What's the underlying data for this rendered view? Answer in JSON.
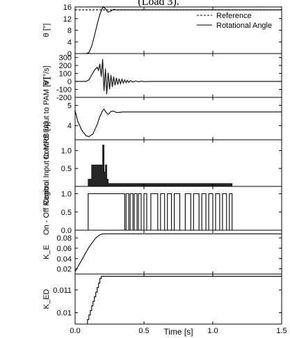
{
  "caption": "(Load 3).",
  "xlabel": "Time [s]",
  "chart_data": [
    {
      "type": "line",
      "panel": "theta",
      "ylabel": "θ [°]",
      "ylim": [
        0,
        16
      ],
      "yticks": [
        0,
        4,
        8,
        12,
        16
      ],
      "xlim": [
        0,
        1.5
      ],
      "legend_position": "top-right",
      "series": [
        {
          "name": "Reference",
          "style": "dashed",
          "x": [
            0,
            1.5
          ],
          "y": [
            15,
            15
          ]
        },
        {
          "name": "Rotational Angle",
          "style": "solid",
          "x": [
            0,
            0.08,
            0.1,
            0.12,
            0.14,
            0.16,
            0.18,
            0.2,
            0.21,
            0.22,
            0.24,
            0.26,
            0.28,
            0.3,
            1.5
          ],
          "y": [
            0,
            0,
            0.3,
            2.5,
            6.0,
            10.0,
            13.5,
            15.8,
            15.9,
            15.3,
            14.2,
            14.6,
            15.2,
            15.0,
            15.0
          ]
        }
      ]
    },
    {
      "type": "line",
      "panel": "theta-dot",
      "ylabel": "θ̇ [°/s]",
      "ylim": [
        -200,
        350
      ],
      "yticks": [
        -200,
        -100,
        0,
        100,
        200,
        300
      ],
      "xlim": [
        0,
        1.5
      ],
      "series": [
        {
          "name": "",
          "style": "solid",
          "x": [
            0,
            0.08,
            0.1,
            0.12,
            0.14,
            0.16,
            0.17,
            0.18,
            0.19,
            0.2,
            0.21,
            0.22,
            0.23,
            0.24,
            0.25,
            0.26,
            0.27,
            0.28,
            0.29,
            0.3,
            0.31,
            0.32,
            0.33,
            0.34,
            0.35,
            0.36,
            0.37,
            0.38,
            0.39,
            0.4,
            0.42,
            0.44,
            0.46,
            0.48,
            0.5,
            0.55,
            1.5
          ],
          "y": [
            0,
            0,
            20,
            80,
            140,
            180,
            140,
            220,
            60,
            280,
            -120,
            160,
            -160,
            110,
            -100,
            80,
            -70,
            60,
            -50,
            45,
            -40,
            35,
            -30,
            28,
            -22,
            20,
            -16,
            14,
            -11,
            10,
            -7,
            6,
            -4,
            3,
            -2,
            0,
            0
          ]
        }
      ]
    },
    {
      "type": "line",
      "panel": "pam-input",
      "ylabel": "Control Input to PAM [V]",
      "ylim": [
        3.3,
        5.4
      ],
      "yticks": [
        4,
        5
      ],
      "xlim": [
        0,
        1.5
      ],
      "series": [
        {
          "name": "",
          "style": "solid",
          "x": [
            0,
            0.02,
            0.05,
            0.08,
            0.1,
            0.13,
            0.16,
            0.18,
            0.2,
            0.21,
            0.22,
            0.24,
            0.26,
            0.28,
            0.3,
            0.35,
            1.5
          ],
          "y": [
            4.75,
            4.2,
            3.75,
            3.5,
            3.45,
            3.6,
            4.05,
            4.45,
            4.75,
            4.82,
            4.7,
            4.55,
            4.7,
            4.72,
            4.65,
            4.68,
            4.68
          ]
        }
      ]
    },
    {
      "type": "area",
      "panel": "mrb-input",
      "ylabel": "Control Input to MRB [A]",
      "ylim": [
        0,
        1.3
      ],
      "yticks": [
        0.5,
        1.0
      ],
      "xlim": [
        0,
        1.5
      ],
      "series": [
        {
          "name": "",
          "style": "filled",
          "x": [
            0,
            0.095,
            0.095,
            0.12,
            0.12,
            0.2,
            0.2,
            0.21,
            0.21,
            0.22,
            0.22,
            0.23,
            0.23,
            0.24,
            0.24,
            0.26,
            0.26,
            1.14,
            1.14,
            1.5
          ],
          "y": [
            0,
            0,
            0.2,
            0.2,
            0.6,
            0.6,
            1.15,
            1.15,
            0.4,
            0.4,
            0.6,
            0.6,
            0.2,
            0.2,
            0.08,
            0.08,
            0.08,
            0.08,
            0,
            0
          ]
        }
      ]
    },
    {
      "type": "line",
      "panel": "on-off-region",
      "ylabel": "On - Off Region",
      "ylim": [
        0,
        1.2
      ],
      "yticks": [
        0.0,
        0.5,
        1.0
      ],
      "xlim": [
        0,
        1.5
      ],
      "series": [
        {
          "name": "",
          "style": "step",
          "x": [
            0,
            0.095,
            0.095,
            0.36,
            0.36,
            0.37,
            0.37,
            0.39,
            0.39,
            0.4,
            0.4,
            0.42,
            0.42,
            0.43,
            0.43,
            0.45,
            0.45,
            0.46,
            0.46,
            0.48,
            0.48,
            0.5,
            0.5,
            0.52,
            0.52,
            0.55,
            0.55,
            0.6,
            0.6,
            0.62,
            0.62,
            0.65,
            0.65,
            0.67,
            0.67,
            0.7,
            0.7,
            0.72,
            0.72,
            0.76,
            0.76,
            0.8,
            0.8,
            0.84,
            0.84,
            0.86,
            0.86,
            0.9,
            0.9,
            0.92,
            0.92,
            0.95,
            0.95,
            0.97,
            0.97,
            1.0,
            1.0,
            1.02,
            1.02,
            1.05,
            1.05,
            1.07,
            1.07,
            1.1,
            1.1,
            1.12,
            1.12,
            1.14,
            1.14,
            1.5
          ],
          "y": [
            0,
            0,
            1,
            1,
            0,
            0,
            1,
            1,
            0,
            0,
            1,
            1,
            0,
            0,
            1,
            1,
            0,
            0,
            1,
            1,
            0,
            0,
            1,
            1,
            0,
            0,
            1,
            1,
            0,
            0,
            1,
            1,
            0,
            0,
            1,
            1,
            0,
            0,
            1,
            1,
            0,
            0,
            1,
            1,
            0,
            0,
            1,
            1,
            0,
            0,
            1,
            1,
            0,
            0,
            1,
            1,
            0,
            0,
            1,
            1,
            0,
            0,
            1,
            1,
            0,
            0,
            1,
            1,
            0,
            0
          ]
        }
      ]
    },
    {
      "type": "line",
      "panel": "ke",
      "ylabel": "K_E",
      "ylim": [
        0.01,
        0.095
      ],
      "yticks": [
        0.02,
        0.04,
        0.06,
        0.08
      ],
      "xlim": [
        0,
        1.5
      ],
      "series": [
        {
          "name": "",
          "style": "solid",
          "x": [
            0,
            0.05,
            0.1,
            0.15,
            0.18,
            0.2,
            1.5
          ],
          "y": [
            0.015,
            0.038,
            0.062,
            0.08,
            0.086,
            0.088,
            0.088
          ]
        }
      ]
    },
    {
      "type": "line",
      "panel": "ked",
      "ylabel": "K_ED",
      "ylim": [
        0.0095,
        0.0117
      ],
      "yticks": [
        0.01,
        0.011
      ],
      "xtick_labels": [
        "0.0",
        "0.5",
        "1.0",
        "1.5"
      ],
      "xlim": [
        0,
        1.5
      ],
      "series": [
        {
          "name": "",
          "style": "staircase",
          "x": [
            0,
            0.09,
            0.09,
            0.1,
            0.1,
            0.11,
            0.11,
            0.12,
            0.12,
            0.13,
            0.13,
            0.14,
            0.14,
            0.15,
            0.15,
            0.16,
            0.16,
            0.17,
            0.17,
            0.18,
            0.18,
            0.19,
            0.19,
            1.5
          ],
          "y": [
            0.0095,
            0.0095,
            0.0097,
            0.0097,
            0.0099,
            0.0099,
            0.0101,
            0.0101,
            0.0103,
            0.0103,
            0.0105,
            0.0105,
            0.0107,
            0.0107,
            0.0109,
            0.0109,
            0.0111,
            0.0111,
            0.0113,
            0.0113,
            0.0115,
            0.0115,
            0.0116,
            0.0116
          ]
        }
      ]
    }
  ]
}
